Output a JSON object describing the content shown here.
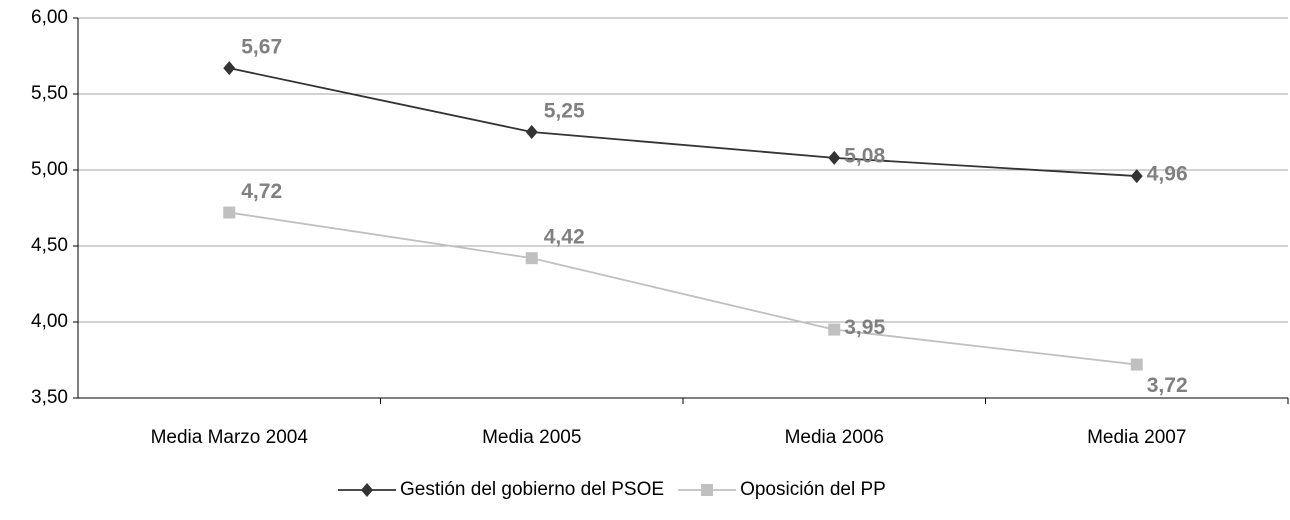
{
  "chart_data": {
    "type": "line",
    "categories": [
      "Media Marzo 2004",
      "Media 2005",
      "Media 2006",
      "Media 2007"
    ],
    "series": [
      {
        "name": "Gestión del gobierno del PSOE",
        "color": "#333333",
        "marker": "diamond",
        "values": [
          5.67,
          5.25,
          5.08,
          4.96
        ],
        "value_labels": [
          "5,67",
          "5,25",
          "5,08",
          "4,96"
        ]
      },
      {
        "name": "Oposición del PP",
        "color": "#c0c0c0",
        "marker": "square",
        "values": [
          4.72,
          4.42,
          3.95,
          3.72
        ],
        "value_labels": [
          "4,72",
          "4,42",
          "3,95",
          "3,72"
        ]
      }
    ],
    "ylim": [
      3.5,
      6
    ],
    "yticks": [
      {
        "value": 3.5,
        "label": "3,50"
      },
      {
        "value": 4,
        "label": "4,00"
      },
      {
        "value": 4.5,
        "label": "4,50"
      },
      {
        "value": 5,
        "label": "5,00"
      },
      {
        "value": 5.5,
        "label": "5,50"
      },
      {
        "value": 6,
        "label": "6,00"
      }
    ],
    "grid": true,
    "legend": "bottom"
  }
}
